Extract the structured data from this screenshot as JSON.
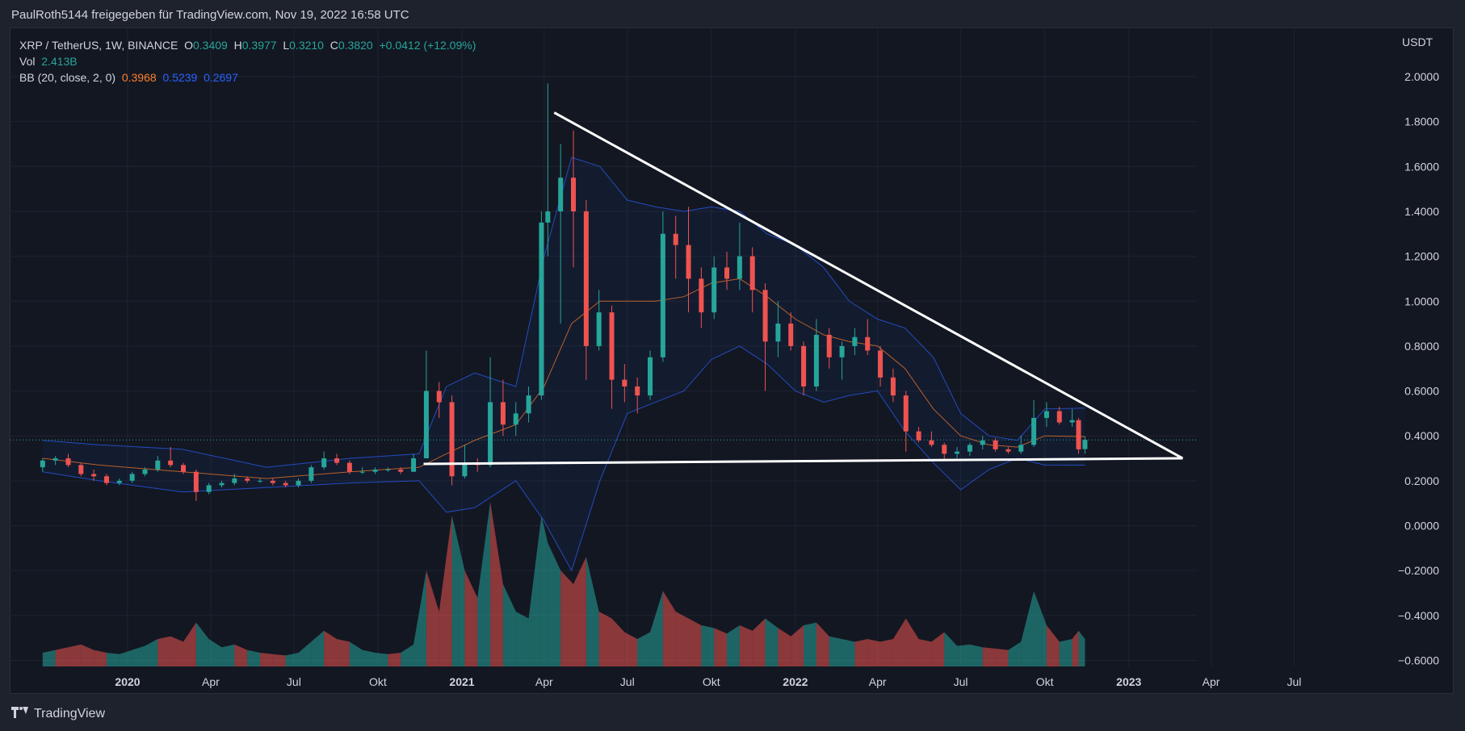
{
  "header": {
    "attribution": "PaulRoth5144 freigegeben für TradingView.com, Nov 19, 2022 16:58 UTC"
  },
  "legend": {
    "symbol": "XRP / TetherUS, 1W, BINANCE",
    "o_label": "O",
    "o_value": "0.3409",
    "h_label": "H",
    "h_value": "0.3977",
    "l_label": "L",
    "l_value": "0.3210",
    "c_label": "C",
    "c_value": "0.3820",
    "change": "+0.0412 (+12.09%)",
    "vol_label": "Vol",
    "vol_value": "2.413B",
    "bb_label": "BB (20, close, 2, 0)",
    "bb_basis": "0.3968",
    "bb_upper": "0.5239",
    "bb_lower": "0.2697"
  },
  "axis_unit": "USDT",
  "footer": {
    "brand": "TradingView"
  },
  "colors": {
    "up": "#26a69a",
    "down": "#ef5350",
    "basis": "#ff7f27",
    "band": "#2962ff",
    "background": "#131722",
    "trendline": "#ffffff"
  },
  "chart_data": {
    "type": "candlestick",
    "title": "XRP / TetherUS, 1W, BINANCE",
    "ylim": [
      -0.6,
      2.1
    ],
    "y_ticks": [
      "2.0000",
      "1.8000",
      "1.6000",
      "1.4000",
      "1.2000",
      "1.0000",
      "0.8000",
      "0.6000",
      "0.4000",
      "0.2000",
      "0.0000",
      "−0.2000",
      "−0.4000",
      "−0.6000"
    ],
    "x_ticks": [
      {
        "label": "2020",
        "date": "2020-01-01"
      },
      {
        "label": "Apr",
        "date": "2020-04-01"
      },
      {
        "label": "Jul",
        "date": "2020-07-01"
      },
      {
        "label": "Okt",
        "date": "2020-10-01"
      },
      {
        "label": "2021",
        "date": "2021-01-01"
      },
      {
        "label": "Apr",
        "date": "2021-04-01"
      },
      {
        "label": "Jul",
        "date": "2021-07-01"
      },
      {
        "label": "Okt",
        "date": "2021-10-01"
      },
      {
        "label": "2022",
        "date": "2022-01-01"
      },
      {
        "label": "Apr",
        "date": "2022-04-01"
      },
      {
        "label": "Jul",
        "date": "2022-07-01"
      },
      {
        "label": "Okt",
        "date": "2022-10-01"
      },
      {
        "label": "2023",
        "date": "2023-01-01"
      },
      {
        "label": "Apr",
        "date": "2023-04-01"
      },
      {
        "label": "Jul",
        "date": "2023-07-01"
      }
    ],
    "last_price": 0.382,
    "candles": [
      {
        "date": "2019-09-30",
        "o": 0.26,
        "h": 0.3,
        "l": 0.24,
        "c": 0.29,
        "v": 0.1
      },
      {
        "date": "2019-10-14",
        "o": 0.29,
        "h": 0.31,
        "l": 0.27,
        "c": 0.3,
        "v": 0.12
      },
      {
        "date": "2019-10-28",
        "o": 0.3,
        "h": 0.32,
        "l": 0.26,
        "c": 0.27,
        "v": 0.14
      },
      {
        "date": "2019-11-11",
        "o": 0.27,
        "h": 0.28,
        "l": 0.22,
        "c": 0.23,
        "v": 0.16
      },
      {
        "date": "2019-11-25",
        "o": 0.23,
        "h": 0.25,
        "l": 0.2,
        "c": 0.22,
        "v": 0.12
      },
      {
        "date": "2019-12-09",
        "o": 0.22,
        "h": 0.23,
        "l": 0.18,
        "c": 0.19,
        "v": 0.1
      },
      {
        "date": "2019-12-23",
        "o": 0.19,
        "h": 0.21,
        "l": 0.18,
        "c": 0.2,
        "v": 0.09
      },
      {
        "date": "2020-01-06",
        "o": 0.2,
        "h": 0.24,
        "l": 0.19,
        "c": 0.23,
        "v": 0.12
      },
      {
        "date": "2020-01-20",
        "o": 0.23,
        "h": 0.26,
        "l": 0.22,
        "c": 0.25,
        "v": 0.15
      },
      {
        "date": "2020-02-03",
        "o": 0.25,
        "h": 0.31,
        "l": 0.24,
        "c": 0.29,
        "v": 0.2
      },
      {
        "date": "2020-02-17",
        "o": 0.29,
        "h": 0.35,
        "l": 0.26,
        "c": 0.27,
        "v": 0.22
      },
      {
        "date": "2020-03-02",
        "o": 0.27,
        "h": 0.28,
        "l": 0.23,
        "c": 0.24,
        "v": 0.18
      },
      {
        "date": "2020-03-16",
        "o": 0.24,
        "h": 0.25,
        "l": 0.11,
        "c": 0.15,
        "v": 0.32
      },
      {
        "date": "2020-03-30",
        "o": 0.15,
        "h": 0.19,
        "l": 0.14,
        "c": 0.18,
        "v": 0.2
      },
      {
        "date": "2020-04-13",
        "o": 0.18,
        "h": 0.2,
        "l": 0.17,
        "c": 0.19,
        "v": 0.14
      },
      {
        "date": "2020-04-27",
        "o": 0.19,
        "h": 0.23,
        "l": 0.18,
        "c": 0.21,
        "v": 0.16
      },
      {
        "date": "2020-05-11",
        "o": 0.21,
        "h": 0.22,
        "l": 0.19,
        "c": 0.2,
        "v": 0.12
      },
      {
        "date": "2020-05-25",
        "o": 0.2,
        "h": 0.21,
        "l": 0.19,
        "c": 0.2,
        "v": 0.1
      },
      {
        "date": "2020-06-08",
        "o": 0.2,
        "h": 0.21,
        "l": 0.18,
        "c": 0.19,
        "v": 0.09
      },
      {
        "date": "2020-06-22",
        "o": 0.19,
        "h": 0.2,
        "l": 0.17,
        "c": 0.18,
        "v": 0.08
      },
      {
        "date": "2020-07-06",
        "o": 0.18,
        "h": 0.21,
        "l": 0.17,
        "c": 0.2,
        "v": 0.1
      },
      {
        "date": "2020-07-20",
        "o": 0.2,
        "h": 0.27,
        "l": 0.19,
        "c": 0.26,
        "v": 0.18
      },
      {
        "date": "2020-08-03",
        "o": 0.26,
        "h": 0.33,
        "l": 0.25,
        "c": 0.3,
        "v": 0.26
      },
      {
        "date": "2020-08-17",
        "o": 0.3,
        "h": 0.32,
        "l": 0.27,
        "c": 0.28,
        "v": 0.2
      },
      {
        "date": "2020-08-31",
        "o": 0.28,
        "h": 0.29,
        "l": 0.23,
        "c": 0.24,
        "v": 0.18
      },
      {
        "date": "2020-09-14",
        "o": 0.24,
        "h": 0.26,
        "l": 0.23,
        "c": 0.24,
        "v": 0.12
      },
      {
        "date": "2020-09-28",
        "o": 0.24,
        "h": 0.26,
        "l": 0.23,
        "c": 0.25,
        "v": 0.1
      },
      {
        "date": "2020-10-12",
        "o": 0.25,
        "h": 0.26,
        "l": 0.24,
        "c": 0.25,
        "v": 0.09
      },
      {
        "date": "2020-10-26",
        "o": 0.25,
        "h": 0.26,
        "l": 0.23,
        "c": 0.24,
        "v": 0.1
      },
      {
        "date": "2020-11-09",
        "o": 0.24,
        "h": 0.32,
        "l": 0.24,
        "c": 0.3,
        "v": 0.16
      },
      {
        "date": "2020-11-23",
        "o": 0.3,
        "h": 0.78,
        "l": 0.3,
        "c": 0.6,
        "v": 0.7
      },
      {
        "date": "2020-12-07",
        "o": 0.6,
        "h": 0.64,
        "l": 0.48,
        "c": 0.55,
        "v": 0.4
      },
      {
        "date": "2020-12-21",
        "o": 0.55,
        "h": 0.58,
        "l": 0.18,
        "c": 0.22,
        "v": 1.1
      },
      {
        "date": "2021-01-04",
        "o": 0.22,
        "h": 0.36,
        "l": 0.21,
        "c": 0.28,
        "v": 0.7
      },
      {
        "date": "2021-01-18",
        "o": 0.28,
        "h": 0.3,
        "l": 0.24,
        "c": 0.27,
        "v": 0.5
      },
      {
        "date": "2021-02-01",
        "o": 0.27,
        "h": 0.75,
        "l": 0.26,
        "c": 0.55,
        "v": 1.2
      },
      {
        "date": "2021-02-15",
        "o": 0.55,
        "h": 0.65,
        "l": 0.4,
        "c": 0.45,
        "v": 0.6
      },
      {
        "date": "2021-03-01",
        "o": 0.45,
        "h": 0.55,
        "l": 0.4,
        "c": 0.5,
        "v": 0.4
      },
      {
        "date": "2021-03-15",
        "o": 0.5,
        "h": 0.62,
        "l": 0.46,
        "c": 0.58,
        "v": 0.35
      },
      {
        "date": "2021-03-29",
        "o": 0.58,
        "h": 1.4,
        "l": 0.56,
        "c": 1.35,
        "v": 1.1
      },
      {
        "date": "2021-04-05",
        "o": 1.35,
        "h": 1.97,
        "l": 1.2,
        "c": 1.4,
        "v": 0.9
      },
      {
        "date": "2021-04-19",
        "o": 1.4,
        "h": 1.7,
        "l": 0.9,
        "c": 1.55,
        "v": 0.7
      },
      {
        "date": "2021-05-03",
        "o": 1.55,
        "h": 1.76,
        "l": 1.15,
        "c": 1.4,
        "v": 0.6
      },
      {
        "date": "2021-05-17",
        "o": 1.4,
        "h": 1.45,
        "l": 0.65,
        "c": 0.8,
        "v": 0.8
      },
      {
        "date": "2021-05-31",
        "o": 0.8,
        "h": 1.05,
        "l": 0.78,
        "c": 0.95,
        "v": 0.4
      },
      {
        "date": "2021-06-14",
        "o": 0.95,
        "h": 0.98,
        "l": 0.52,
        "c": 0.65,
        "v": 0.35
      },
      {
        "date": "2021-06-28",
        "o": 0.65,
        "h": 0.72,
        "l": 0.55,
        "c": 0.62,
        "v": 0.25
      },
      {
        "date": "2021-07-12",
        "o": 0.62,
        "h": 0.66,
        "l": 0.5,
        "c": 0.58,
        "v": 0.2
      },
      {
        "date": "2021-07-26",
        "o": 0.58,
        "h": 0.78,
        "l": 0.56,
        "c": 0.75,
        "v": 0.25
      },
      {
        "date": "2021-08-09",
        "o": 0.75,
        "h": 1.4,
        "l": 0.73,
        "c": 1.3,
        "v": 0.55
      },
      {
        "date": "2021-08-23",
        "o": 1.3,
        "h": 1.38,
        "l": 1.1,
        "c": 1.25,
        "v": 0.4
      },
      {
        "date": "2021-09-06",
        "o": 1.25,
        "h": 1.42,
        "l": 0.95,
        "c": 1.1,
        "v": 0.35
      },
      {
        "date": "2021-09-20",
        "o": 1.1,
        "h": 1.15,
        "l": 0.88,
        "c": 0.95,
        "v": 0.3
      },
      {
        "date": "2021-10-04",
        "o": 0.95,
        "h": 1.2,
        "l": 0.92,
        "c": 1.15,
        "v": 0.28
      },
      {
        "date": "2021-10-18",
        "o": 1.15,
        "h": 1.22,
        "l": 1.05,
        "c": 1.1,
        "v": 0.24
      },
      {
        "date": "2021-11-01",
        "o": 1.1,
        "h": 1.35,
        "l": 1.05,
        "c": 1.2,
        "v": 0.3
      },
      {
        "date": "2021-11-15",
        "o": 1.2,
        "h": 1.24,
        "l": 0.95,
        "c": 1.05,
        "v": 0.26
      },
      {
        "date": "2021-11-29",
        "o": 1.05,
        "h": 1.08,
        "l": 0.6,
        "c": 0.82,
        "v": 0.35
      },
      {
        "date": "2021-12-13",
        "o": 0.82,
        "h": 1.0,
        "l": 0.75,
        "c": 0.9,
        "v": 0.28
      },
      {
        "date": "2021-12-27",
        "o": 0.9,
        "h": 0.95,
        "l": 0.78,
        "c": 0.8,
        "v": 0.22
      },
      {
        "date": "2022-01-10",
        "o": 0.8,
        "h": 0.82,
        "l": 0.58,
        "c": 0.62,
        "v": 0.3
      },
      {
        "date": "2022-01-24",
        "o": 0.62,
        "h": 0.92,
        "l": 0.6,
        "c": 0.85,
        "v": 0.32
      },
      {
        "date": "2022-02-07",
        "o": 0.85,
        "h": 0.88,
        "l": 0.7,
        "c": 0.75,
        "v": 0.22
      },
      {
        "date": "2022-02-21",
        "o": 0.75,
        "h": 0.82,
        "l": 0.65,
        "c": 0.8,
        "v": 0.2
      },
      {
        "date": "2022-03-07",
        "o": 0.8,
        "h": 0.88,
        "l": 0.76,
        "c": 0.84,
        "v": 0.18
      },
      {
        "date": "2022-03-21",
        "o": 0.84,
        "h": 0.92,
        "l": 0.76,
        "c": 0.78,
        "v": 0.2
      },
      {
        "date": "2022-04-04",
        "o": 0.78,
        "h": 0.8,
        "l": 0.62,
        "c": 0.66,
        "v": 0.18
      },
      {
        "date": "2022-04-18",
        "o": 0.66,
        "h": 0.7,
        "l": 0.55,
        "c": 0.58,
        "v": 0.2
      },
      {
        "date": "2022-05-02",
        "o": 0.58,
        "h": 0.6,
        "l": 0.33,
        "c": 0.42,
        "v": 0.35
      },
      {
        "date": "2022-05-16",
        "o": 0.42,
        "h": 0.44,
        "l": 0.37,
        "c": 0.38,
        "v": 0.2
      },
      {
        "date": "2022-05-30",
        "o": 0.38,
        "h": 0.42,
        "l": 0.35,
        "c": 0.36,
        "v": 0.18
      },
      {
        "date": "2022-06-13",
        "o": 0.36,
        "h": 0.37,
        "l": 0.29,
        "c": 0.32,
        "v": 0.25
      },
      {
        "date": "2022-06-27",
        "o": 0.32,
        "h": 0.35,
        "l": 0.3,
        "c": 0.33,
        "v": 0.15
      },
      {
        "date": "2022-07-11",
        "o": 0.33,
        "h": 0.37,
        "l": 0.31,
        "c": 0.36,
        "v": 0.16
      },
      {
        "date": "2022-07-25",
        "o": 0.36,
        "h": 0.4,
        "l": 0.34,
        "c": 0.38,
        "v": 0.14
      },
      {
        "date": "2022-08-08",
        "o": 0.38,
        "h": 0.39,
        "l": 0.33,
        "c": 0.34,
        "v": 0.13
      },
      {
        "date": "2022-08-22",
        "o": 0.34,
        "h": 0.35,
        "l": 0.32,
        "c": 0.33,
        "v": 0.12
      },
      {
        "date": "2022-09-05",
        "o": 0.33,
        "h": 0.4,
        "l": 0.32,
        "c": 0.36,
        "v": 0.18
      },
      {
        "date": "2022-09-19",
        "o": 0.36,
        "h": 0.56,
        "l": 0.35,
        "c": 0.48,
        "v": 0.55
      },
      {
        "date": "2022-10-03",
        "o": 0.48,
        "h": 0.55,
        "l": 0.44,
        "c": 0.51,
        "v": 0.3
      },
      {
        "date": "2022-10-17",
        "o": 0.51,
        "h": 0.53,
        "l": 0.45,
        "c": 0.46,
        "v": 0.18
      },
      {
        "date": "2022-10-31",
        "o": 0.46,
        "h": 0.52,
        "l": 0.44,
        "c": 0.47,
        "v": 0.2
      },
      {
        "date": "2022-11-07",
        "o": 0.47,
        "h": 0.48,
        "l": 0.32,
        "c": 0.34,
        "v": 0.26
      },
      {
        "date": "2022-11-14",
        "o": 0.3409,
        "h": 0.3977,
        "l": 0.321,
        "c": 0.382,
        "v": 0.2
      }
    ],
    "bollinger": {
      "dates": [
        "2019-09-30",
        "2019-12-01",
        "2020-03-01",
        "2020-06-01",
        "2020-09-01",
        "2020-11-15",
        "2020-12-15",
        "2021-01-15",
        "2021-03-01",
        "2021-04-01",
        "2021-05-01",
        "2021-06-01",
        "2021-07-01",
        "2021-08-01",
        "2021-09-01",
        "2021-10-01",
        "2021-11-01",
        "2021-12-01",
        "2022-01-01",
        "2022-02-01",
        "2022-03-01",
        "2022-04-01",
        "2022-05-01",
        "2022-06-01",
        "2022-07-01",
        "2022-08-01",
        "2022-09-01",
        "2022-10-01",
        "2022-11-14"
      ],
      "upper": [
        0.38,
        0.36,
        0.34,
        0.26,
        0.3,
        0.32,
        0.62,
        0.68,
        0.62,
        1.2,
        1.64,
        1.6,
        1.45,
        1.42,
        1.4,
        1.42,
        1.4,
        1.3,
        1.25,
        1.15,
        1.0,
        0.92,
        0.88,
        0.75,
        0.5,
        0.4,
        0.38,
        0.52,
        0.5239
      ],
      "basis": [
        0.3,
        0.27,
        0.24,
        0.21,
        0.24,
        0.26,
        0.32,
        0.38,
        0.45,
        0.62,
        0.9,
        1.0,
        1.0,
        1.0,
        1.02,
        1.08,
        1.1,
        1.02,
        0.92,
        0.85,
        0.82,
        0.8,
        0.7,
        0.52,
        0.4,
        0.36,
        0.35,
        0.4,
        0.3968
      ],
      "lower": [
        0.24,
        0.2,
        0.15,
        0.17,
        0.19,
        0.2,
        0.06,
        0.08,
        0.2,
        0.02,
        -0.2,
        0.2,
        0.5,
        0.55,
        0.6,
        0.74,
        0.8,
        0.72,
        0.6,
        0.55,
        0.58,
        0.6,
        0.42,
        0.28,
        0.16,
        0.25,
        0.3,
        0.27,
        0.2697
      ]
    },
    "trendlines": [
      {
        "from": {
          "date": "2021-04-12",
          "price": 1.84
        },
        "to": {
          "date": "2023-03-01",
          "price": 0.3
        }
      },
      {
        "from": {
          "date": "2020-11-20",
          "price": 0.275
        },
        "to": {
          "date": "2023-03-01",
          "price": 0.3
        }
      }
    ]
  }
}
